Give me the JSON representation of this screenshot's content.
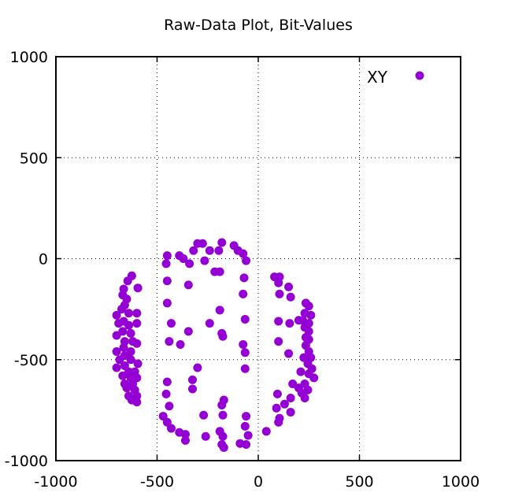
{
  "chart_data": {
    "type": "scatter",
    "title": "Raw-Data Plot, Bit-Values",
    "xlabel": "",
    "ylabel": "",
    "xlim": [
      -1000,
      1000
    ],
    "ylim": [
      -1000,
      1000
    ],
    "xticks": [
      -1000,
      -500,
      0,
      500,
      1000
    ],
    "yticks": [
      1000,
      500,
      0,
      -500,
      -1000
    ],
    "xtick_labels": [
      "-1000",
      "-500",
      "0",
      "500",
      "1000"
    ],
    "ytick_labels": [
      "1000",
      "500",
      "0",
      "-500",
      "-1000"
    ],
    "grid": true,
    "legend_position": "top-right",
    "series": [
      {
        "name": "XY",
        "color": "#9400d3",
        "points": [
          [
            -300,
            75
          ],
          [
            -275,
            75
          ],
          [
            -180,
            80
          ],
          [
            -120,
            65
          ],
          [
            -100,
            40
          ],
          [
            -75,
            25
          ],
          [
            -320,
            40
          ],
          [
            -240,
            40
          ],
          [
            -195,
            40
          ],
          [
            -60,
            -10
          ],
          [
            -450,
            15
          ],
          [
            -390,
            15
          ],
          [
            -370,
            0
          ],
          [
            -455,
            -25
          ],
          [
            -265,
            -10
          ],
          [
            -340,
            -25
          ],
          [
            -215,
            -65
          ],
          [
            -190,
            -65
          ],
          [
            -70,
            -95
          ],
          [
            -450,
            -110
          ],
          [
            -345,
            -130
          ],
          [
            -75,
            -175
          ],
          [
            -450,
            -220
          ],
          [
            -190,
            -255
          ],
          [
            -430,
            -320
          ],
          [
            -240,
            -320
          ],
          [
            -65,
            -300
          ],
          [
            -345,
            -360
          ],
          [
            -180,
            -370
          ],
          [
            -175,
            -385
          ],
          [
            -440,
            -410
          ],
          [
            -385,
            -425
          ],
          [
            -75,
            -425
          ],
          [
            -65,
            -465
          ],
          [
            -300,
            -540
          ],
          [
            -65,
            -545
          ],
          [
            -325,
            -600
          ],
          [
            -325,
            -645
          ],
          [
            -450,
            -610
          ],
          [
            -455,
            -670
          ],
          [
            -170,
            -700
          ],
          [
            -180,
            -725
          ],
          [
            -440,
            -730
          ],
          [
            -175,
            -775
          ],
          [
            -470,
            -780
          ],
          [
            -270,
            -775
          ],
          [
            -60,
            -780
          ],
          [
            -450,
            -810
          ],
          [
            -430,
            -840
          ],
          [
            -390,
            -860
          ],
          [
            -360,
            -870
          ],
          [
            -260,
            -880
          ],
          [
            -190,
            -855
          ],
          [
            -175,
            -880
          ],
          [
            -65,
            -830
          ],
          [
            -360,
            -900
          ],
          [
            -180,
            -920
          ],
          [
            -170,
            -935
          ],
          [
            -90,
            -915
          ],
          [
            -60,
            -920
          ],
          [
            -50,
            -875
          ],
          [
            40,
            -855
          ],
          [
            -625,
            -85
          ],
          [
            -645,
            -110
          ],
          [
            -665,
            -150
          ],
          [
            -595,
            -145
          ],
          [
            -670,
            -180
          ],
          [
            -650,
            -200
          ],
          [
            -660,
            -230
          ],
          [
            -675,
            -250
          ],
          [
            -640,
            -270
          ],
          [
            -700,
            -280
          ],
          [
            -600,
            -270
          ],
          [
            -690,
            -320
          ],
          [
            -665,
            -310
          ],
          [
            -640,
            -330
          ],
          [
            -600,
            -320
          ],
          [
            -670,
            -360
          ],
          [
            -630,
            -370
          ],
          [
            -700,
            -380
          ],
          [
            -660,
            -410
          ],
          [
            -620,
            -410
          ],
          [
            -600,
            -420
          ],
          [
            -665,
            -440
          ],
          [
            -630,
            -460
          ],
          [
            -700,
            -460
          ],
          [
            -660,
            -480
          ],
          [
            -685,
            -500
          ],
          [
            -630,
            -500
          ],
          [
            -595,
            -520
          ],
          [
            -660,
            -530
          ],
          [
            -700,
            -540
          ],
          [
            -640,
            -560
          ],
          [
            -610,
            -560
          ],
          [
            -670,
            -580
          ],
          [
            -630,
            -590
          ],
          [
            -600,
            -590
          ],
          [
            -660,
            -620
          ],
          [
            -620,
            -620
          ],
          [
            -650,
            -640
          ],
          [
            -610,
            -650
          ],
          [
            -640,
            -680
          ],
          [
            -600,
            -680
          ],
          [
            -625,
            -700
          ],
          [
            -600,
            -710
          ],
          [
            80,
            -90
          ],
          [
            105,
            -90
          ],
          [
            100,
            -120
          ],
          [
            150,
            -140
          ],
          [
            105,
            -175
          ],
          [
            160,
            -190
          ],
          [
            235,
            -220
          ],
          [
            250,
            -235
          ],
          [
            230,
            -270
          ],
          [
            260,
            -280
          ],
          [
            200,
            -305
          ],
          [
            100,
            -310
          ],
          [
            220,
            -305
          ],
          [
            250,
            -320
          ],
          [
            155,
            -320
          ],
          [
            230,
            -340
          ],
          [
            250,
            -360
          ],
          [
            235,
            -390
          ],
          [
            100,
            -410
          ],
          [
            250,
            -400
          ],
          [
            235,
            -430
          ],
          [
            150,
            -470
          ],
          [
            250,
            -460
          ],
          [
            225,
            -490
          ],
          [
            260,
            -490
          ],
          [
            245,
            -520
          ],
          [
            265,
            -545
          ],
          [
            210,
            -560
          ],
          [
            250,
            -570
          ],
          [
            275,
            -590
          ],
          [
            170,
            -620
          ],
          [
            230,
            -620
          ],
          [
            200,
            -640
          ],
          [
            245,
            -650
          ],
          [
            215,
            -665
          ],
          [
            95,
            -670
          ],
          [
            160,
            -690
          ],
          [
            230,
            -690
          ],
          [
            130,
            -720
          ],
          [
            90,
            -740
          ],
          [
            160,
            -760
          ],
          [
            105,
            -790
          ],
          [
            100,
            -810
          ]
        ]
      }
    ]
  }
}
